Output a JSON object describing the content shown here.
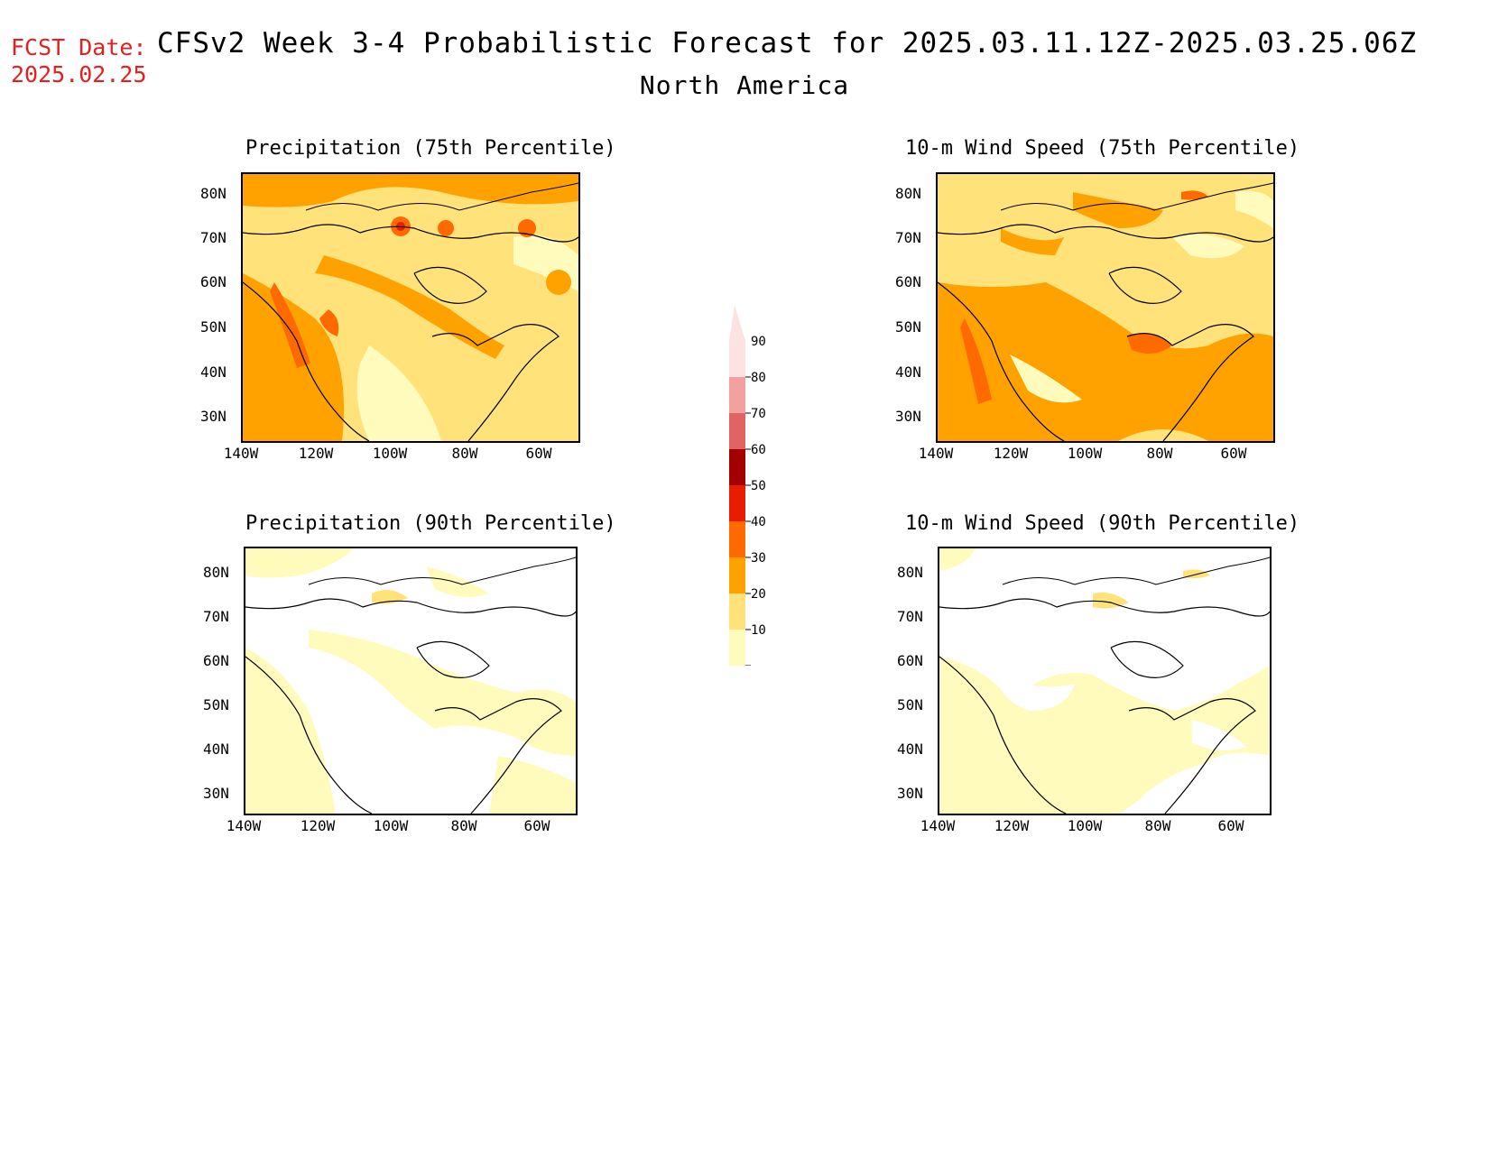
{
  "header": {
    "fcst_label": "FCST Date:",
    "fcst_date": "2025.02.25",
    "title": "CFSv2 Week 3-4 Probabilistic Forecast for 2025.03.11.12Z-2025.03.25.06Z",
    "subtitle": "North America"
  },
  "colors": {
    "accent_red": "#e81e1e",
    "scale": [
      "#fffbbd",
      "#ffe27a",
      "#ffa200",
      "#ff6a00",
      "#e81c00",
      "#a40000",
      "#e06464",
      "#f3a0a0",
      "#fde2e2"
    ]
  },
  "colorbar": {
    "levels": [
      "10",
      "20",
      "30",
      "40",
      "50",
      "60",
      "70",
      "80",
      "90"
    ]
  },
  "panels": [
    {
      "title": "Precipitation (75th Percentile)",
      "lat_labels": [
        "80N",
        "70N",
        "60N",
        "50N",
        "40N",
        "30N"
      ],
      "lon_labels": [
        "140W",
        "120W",
        "100W",
        "80W",
        "60W"
      ]
    },
    {
      "title": "10-m Wind Speed (75th Percentile)",
      "lat_labels": [
        "80N",
        "70N",
        "60N",
        "50N",
        "40N",
        "30N"
      ],
      "lon_labels": [
        "140W",
        "120W",
        "100W",
        "80W",
        "60W"
      ]
    },
    {
      "title": "Precipitation (90th Percentile)",
      "lat_labels": [
        "80N",
        "70N",
        "60N",
        "50N",
        "40N",
        "30N"
      ],
      "lon_labels": [
        "140W",
        "120W",
        "100W",
        "80W",
        "60W"
      ]
    },
    {
      "title": "10-m Wind Speed (90th Percentile)",
      "lat_labels": [
        "80N",
        "70N",
        "60N",
        "50N",
        "40N",
        "30N"
      ],
      "lon_labels": [
        "140W",
        "120W",
        "100W",
        "80W",
        "60W"
      ]
    }
  ]
}
